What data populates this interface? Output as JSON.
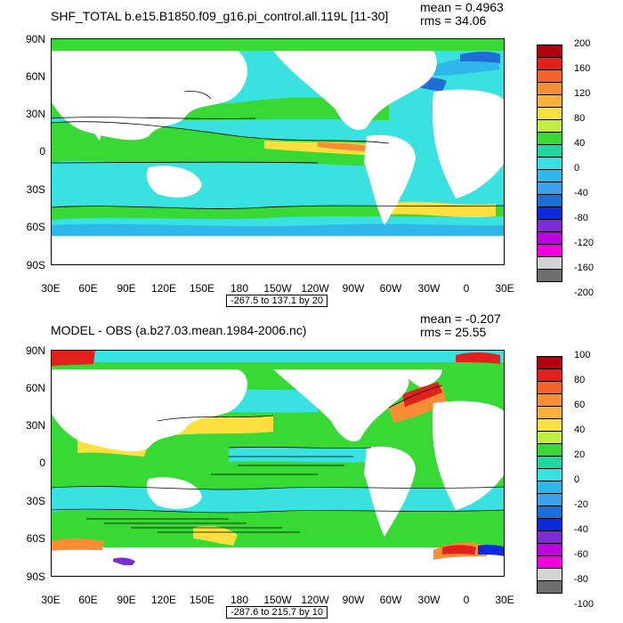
{
  "panels": [
    {
      "title": "SHF_TOTAL b.e15.B1850.f09_g16.pi_control.all.119L [11-30]",
      "mean": "mean = 0.4963",
      "rms": "rms = 34.06",
      "range": "-267.5 to 137.1 by 20",
      "lat_labels": [
        "90N",
        "60N",
        "30N",
        "0",
        "30S",
        "60S",
        "90S"
      ],
      "lon_labels": [
        "30E",
        "60E",
        "90E",
        "120E",
        "150E",
        "180",
        "150W",
        "120W",
        "90W",
        "60W",
        "30W",
        "0",
        "30E"
      ],
      "colorbar": {
        "labels": [
          "200",
          "160",
          "120",
          "80",
          "40",
          "0",
          "-40",
          "-80",
          "-120",
          "-160",
          "-200"
        ],
        "colors": [
          "#b2000f",
          "#e2211d",
          "#f6612c",
          "#f98d35",
          "#fbaf3c",
          "#fde040",
          "#c0ef41",
          "#38d934",
          "#20d7a0",
          "#39e1e1",
          "#2fb7ea",
          "#3aa0ec",
          "#1e6ed8",
          "#0a2adb",
          "#7d2dd6",
          "#bd00e0",
          "#f000dd",
          "#d3d3d3",
          "#6e6e6e"
        ]
      }
    },
    {
      "title": "MODEL - OBS (a.b27.03.mean.1984-2006.nc)",
      "mean": "mean = -0.207",
      "rms": "rms = 25.55",
      "range": "-287.6 to 215.7 by 10",
      "lat_labels": [
        "90N",
        "60N",
        "30N",
        "0",
        "30S",
        "60S",
        "90S"
      ],
      "lon_labels": [
        "30E",
        "60E",
        "90E",
        "120E",
        "150E",
        "180",
        "150W",
        "120W",
        "90W",
        "60W",
        "30W",
        "0",
        "30E"
      ],
      "colorbar": {
        "labels": [
          "100",
          "80",
          "60",
          "40",
          "20",
          "0",
          "-20",
          "-40",
          "-60",
          "-80",
          "-100"
        ],
        "colors": [
          "#b2000f",
          "#e2211d",
          "#f6612c",
          "#f98d35",
          "#fbaf3c",
          "#fde040",
          "#c0ef41",
          "#38d934",
          "#20d7a0",
          "#39e1e1",
          "#2fb7ea",
          "#3aa0ec",
          "#1e6ed8",
          "#0a2adb",
          "#7d2dd6",
          "#bd00e0",
          "#f000dd",
          "#d3d3d3",
          "#6e6e6e"
        ]
      }
    }
  ],
  "map_colors": {
    "ocean_base": "#39e1e1",
    "ocean_alt": "#2fb7ea",
    "positive": "#38d934",
    "warm": "#fde040",
    "hot": "#f98d35",
    "cold": "#1e6ed8",
    "land": "#ffffff"
  }
}
